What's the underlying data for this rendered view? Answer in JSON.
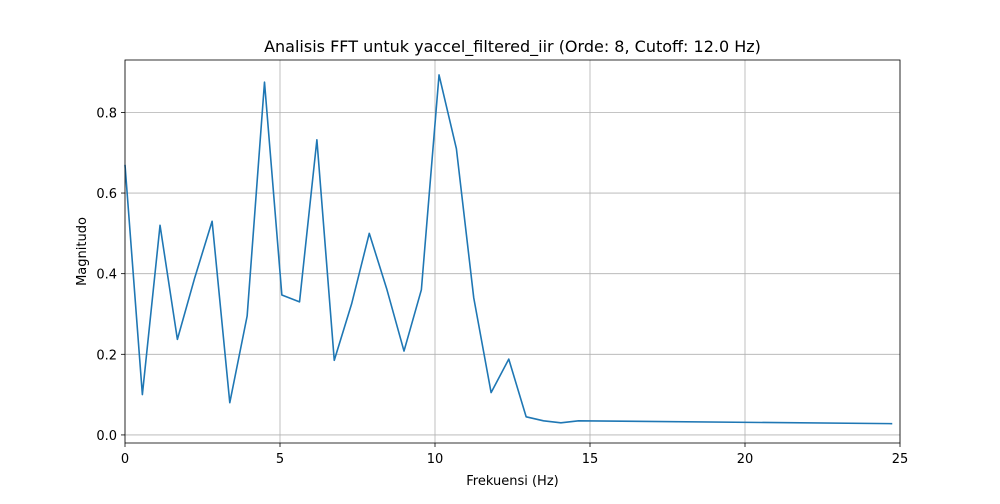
{
  "chart_data": {
    "type": "line",
    "title": "Analisis FFT untuk yaccel_filtered_iir (Orde: 8, Cutoff: 12.0 Hz)",
    "xlabel": "Frekuensi (Hz)",
    "ylabel": "Magnitudo",
    "xlim": [
      0,
      25
    ],
    "ylim": [
      -0.02,
      0.93
    ],
    "xticks": [
      0,
      5,
      10,
      15,
      20,
      25
    ],
    "xtick_labels": [
      "0",
      "5",
      "10",
      "15",
      "20",
      "25"
    ],
    "yticks": [
      0.0,
      0.2,
      0.4,
      0.6,
      0.8
    ],
    "ytick_labels": [
      "0.0",
      "0.2",
      "0.4",
      "0.6",
      "0.8"
    ],
    "grid": true,
    "series": [
      {
        "color": "#1f77b4",
        "x": [
          0.0,
          0.56,
          1.13,
          1.69,
          2.25,
          2.81,
          3.38,
          3.94,
          4.5,
          5.06,
          5.63,
          6.19,
          6.75,
          7.31,
          7.88,
          8.44,
          9.0,
          9.56,
          10.13,
          10.69,
          11.25,
          11.81,
          12.38,
          12.94,
          13.5,
          14.06,
          14.63,
          24.75
        ],
        "y": [
          0.67,
          0.1,
          0.52,
          0.237,
          0.39,
          0.53,
          0.08,
          0.295,
          0.875,
          0.347,
          0.33,
          0.732,
          0.185,
          0.325,
          0.5,
          0.363,
          0.208,
          0.36,
          0.893,
          0.71,
          0.34,
          0.105,
          0.188,
          0.045,
          0.035,
          0.03,
          0.035,
          0.028
        ]
      }
    ]
  }
}
